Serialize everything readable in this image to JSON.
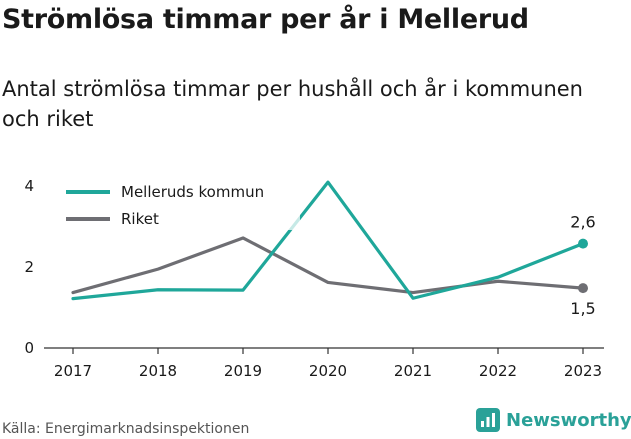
{
  "title": "Strömlösa timmar per år i Mellerud",
  "subtitle": "Antal strömlösa timmar per hushåll och år i kommunen och riket",
  "source": "Källa: Energimarknadsinspektionen",
  "brand": "Newsworthy",
  "colors": {
    "kommun": "#1fa79a",
    "riket": "#6e6e73",
    "brand": "#2aa198"
  },
  "chart_data": {
    "type": "line",
    "x": [
      "2017",
      "2018",
      "2019",
      "2020",
      "2021",
      "2022",
      "2023"
    ],
    "ylim": [
      0,
      4.4
    ],
    "yticks": [
      "0",
      "2",
      "4"
    ],
    "ytick_values": [
      0,
      2,
      4
    ],
    "legend_position": "top-left",
    "series": [
      {
        "name": "Melleruds kommun",
        "color": "#1fa79a",
        "values": [
          1.22,
          1.44,
          1.43,
          4.1,
          1.23,
          1.75,
          2.58
        ],
        "end_label": "2,6"
      },
      {
        "name": "Riket",
        "color": "#6e6e73",
        "values": [
          1.37,
          1.95,
          2.72,
          1.62,
          1.37,
          1.65,
          1.48
        ],
        "end_label": "1,5"
      }
    ]
  }
}
